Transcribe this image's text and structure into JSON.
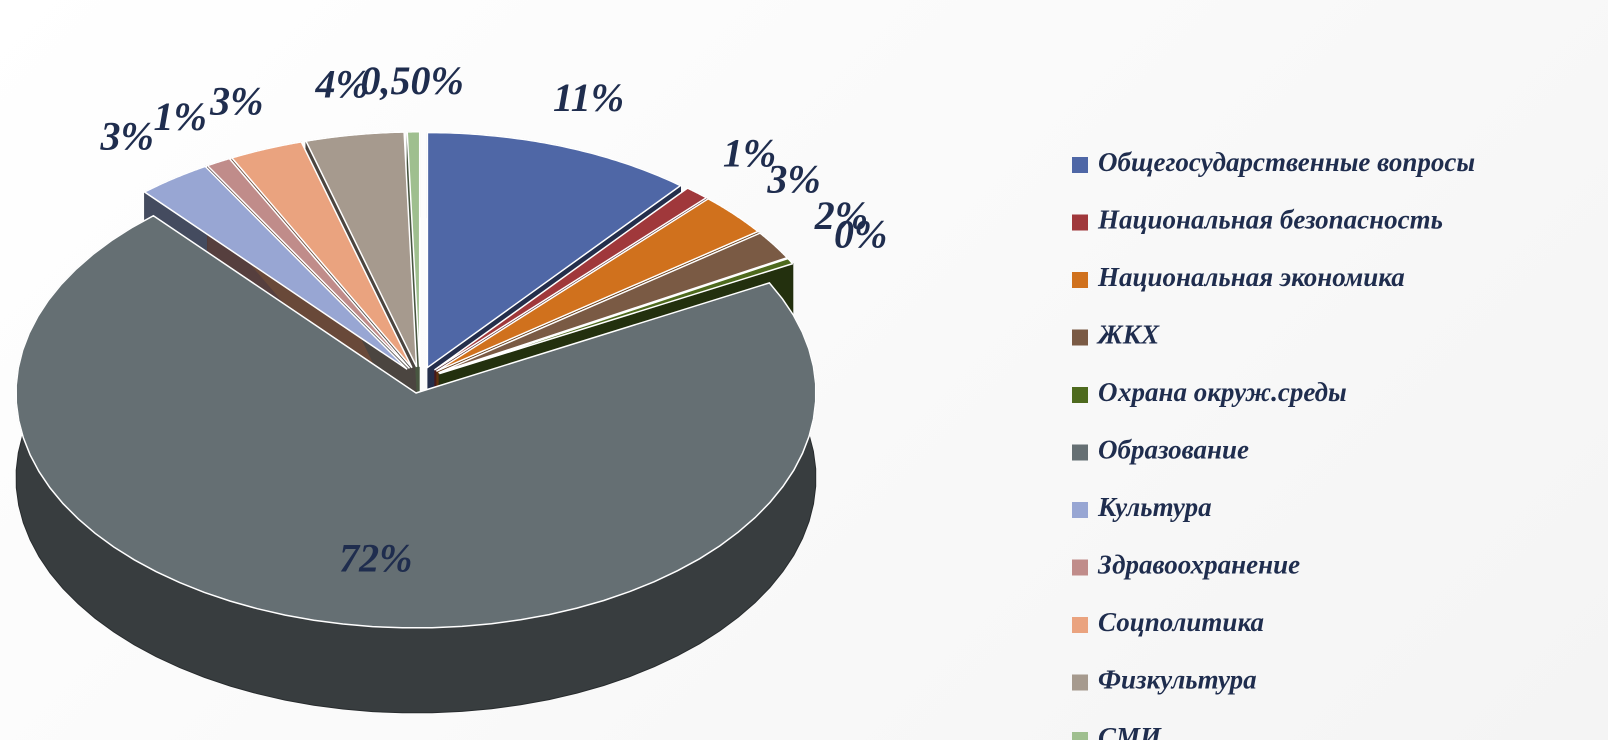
{
  "chart_data": {
    "type": "pie",
    "categories": [
      "Общегосударственные вопросы",
      "Национальная безопасность",
      "Национальная экономика",
      "ЖКХ",
      "Охрана окруж.среды",
      "Образование",
      "Культура",
      "Здравоохранение",
      "Соцполитика",
      "Физкультура",
      "СМИ"
    ],
    "values": [
      11,
      1,
      3,
      2,
      0.4,
      72,
      3,
      1,
      3,
      4,
      0.5
    ],
    "value_labels": [
      "11%",
      "1%",
      "3%",
      "2%",
      "0%",
      "72%",
      "3%",
      "1%",
      "3%",
      "4%",
      "0,50%"
    ],
    "colors": [
      "#4f67a6",
      "#a0383b",
      "#d0711d",
      "#7a5a44",
      "#4e6a1e",
      "#656f73",
      "#98a6d3",
      "#c08c8a",
      "#eaa37f",
      "#a69a8e",
      "#9fbf8f"
    ],
    "legend": "right"
  }
}
